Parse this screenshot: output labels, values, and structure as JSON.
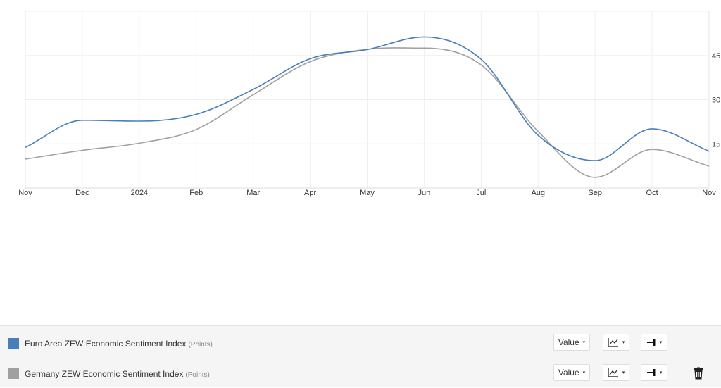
{
  "chart_data": {
    "type": "line",
    "title": "",
    "xlabel": "",
    "ylabel": "",
    "x_ticks": [
      "Nov",
      "Dec",
      "2024",
      "Feb",
      "Mar",
      "Apr",
      "May",
      "Jun",
      "Jul",
      "Aug",
      "Sep",
      "Oct",
      "Nov"
    ],
    "y_ticks": [
      15,
      30,
      45
    ],
    "ylim": [
      0,
      60
    ],
    "y_axis_side": "right",
    "grid": true,
    "legend_position": "bottom",
    "series": [
      {
        "name": "Euro Area ZEW Economic Sentiment Index",
        "unit": "(Points)",
        "color": "#4a7ebb",
        "x": [
          "2023-11",
          "2023-12",
          "2024-01",
          "2024-02",
          "2024-03",
          "2024-04",
          "2024-05",
          "2024-06",
          "2024-07",
          "2024-08",
          "2024-09",
          "2024-10",
          "2024-11"
        ],
        "values": [
          13.8,
          23.0,
          22.7,
          25.0,
          33.5,
          43.9,
          47.0,
          51.3,
          43.7,
          17.9,
          9.3,
          20.1,
          12.5
        ]
      },
      {
        "name": "Germany ZEW Economic Sentiment Index",
        "unit": "(Points)",
        "color": "#a0a0a0",
        "x": [
          "2023-11",
          "2023-12",
          "2024-01",
          "2024-02",
          "2024-03",
          "2024-04",
          "2024-05",
          "2024-06",
          "2024-07",
          "2024-08",
          "2024-09",
          "2024-10",
          "2024-11"
        ],
        "values": [
          9.8,
          12.8,
          15.2,
          19.9,
          31.7,
          42.9,
          47.1,
          47.5,
          41.8,
          19.2,
          3.6,
          13.1,
          7.4
        ]
      }
    ]
  },
  "controls": {
    "value_label": "Value",
    "caret": "▾"
  },
  "icons": {
    "type": "line-chart-icon",
    "axis": "axis-side-icon",
    "delete": "trash-icon"
  }
}
